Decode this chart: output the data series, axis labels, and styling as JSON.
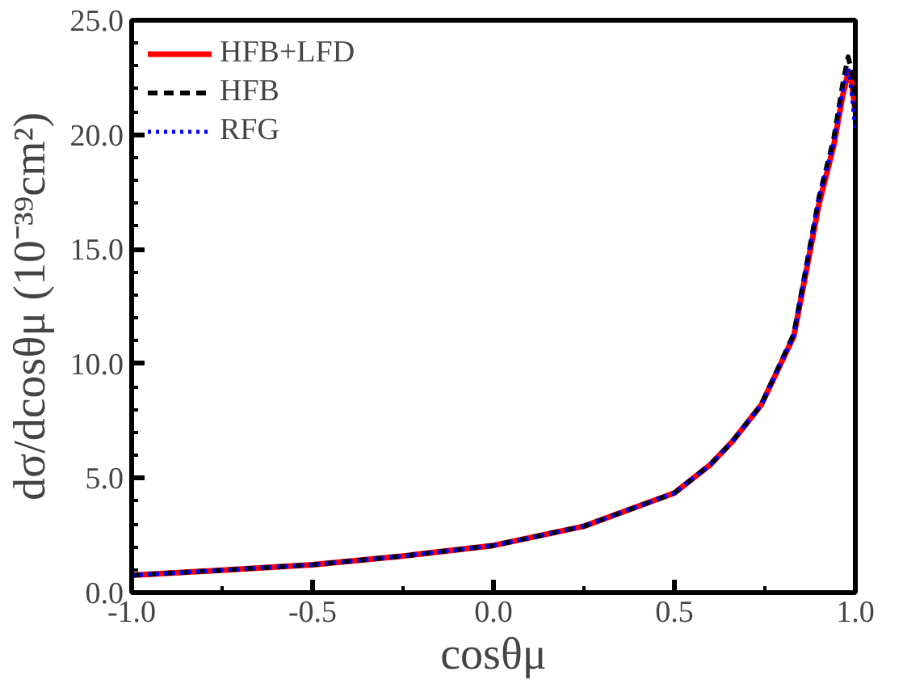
{
  "chart_data": {
    "type": "line",
    "xlabel": "cosθμ",
    "ylabel": "dσ/dcosθμ (10⁻³⁹cm²)",
    "xlim": [
      -1.0,
      1.0
    ],
    "ylim": [
      0.0,
      25.0
    ],
    "xticks": [
      {
        "value": -1.0,
        "label": "-1.0"
      },
      {
        "value": -0.5,
        "label": "-0.5"
      },
      {
        "value": 0.0,
        "label": "0.0"
      },
      {
        "value": 0.5,
        "label": "0.5"
      },
      {
        "value": 1.0,
        "label": "1.0"
      }
    ],
    "yticks": [
      {
        "value": 0,
        "label": "0.0"
      },
      {
        "value": 5,
        "label": "5.0"
      },
      {
        "value": 10,
        "label": "10.0"
      },
      {
        "value": 15,
        "label": "15.0"
      },
      {
        "value": 20,
        "label": "20.0"
      },
      {
        "value": 25,
        "label": "25.0"
      }
    ],
    "x": [
      -1.0,
      -0.75,
      -0.5,
      -0.25,
      0.0,
      0.25,
      0.5,
      0.6,
      0.66,
      0.74,
      0.83,
      0.9,
      0.94,
      0.965,
      0.98,
      0.99,
      1.0
    ],
    "series": [
      {
        "name": "HFB+LFD",
        "color": "#ff0000",
        "line_style": "solid",
        "values": [
          0.76,
          0.98,
          1.22,
          1.6,
          2.06,
          2.9,
          4.35,
          5.6,
          6.6,
          8.2,
          11.2,
          17.0,
          19.5,
          21.7,
          22.7,
          22.3,
          21.0
        ]
      },
      {
        "name": "HFB",
        "color": "#000000",
        "line_style": "dashed",
        "values": [
          0.76,
          0.98,
          1.22,
          1.6,
          2.06,
          2.9,
          4.35,
          5.6,
          6.6,
          8.2,
          11.3,
          17.3,
          19.8,
          22.2,
          23.4,
          22.8,
          21.0
        ]
      },
      {
        "name": "RFG",
        "color": "#0000ff",
        "line_style": "dotted",
        "values": [
          0.76,
          0.98,
          1.22,
          1.6,
          2.06,
          2.9,
          4.35,
          5.6,
          6.6,
          8.2,
          11.2,
          17.3,
          19.6,
          21.9,
          22.9,
          21.8,
          20.2
        ]
      }
    ],
    "legend": "top left",
    "grid": false
  }
}
